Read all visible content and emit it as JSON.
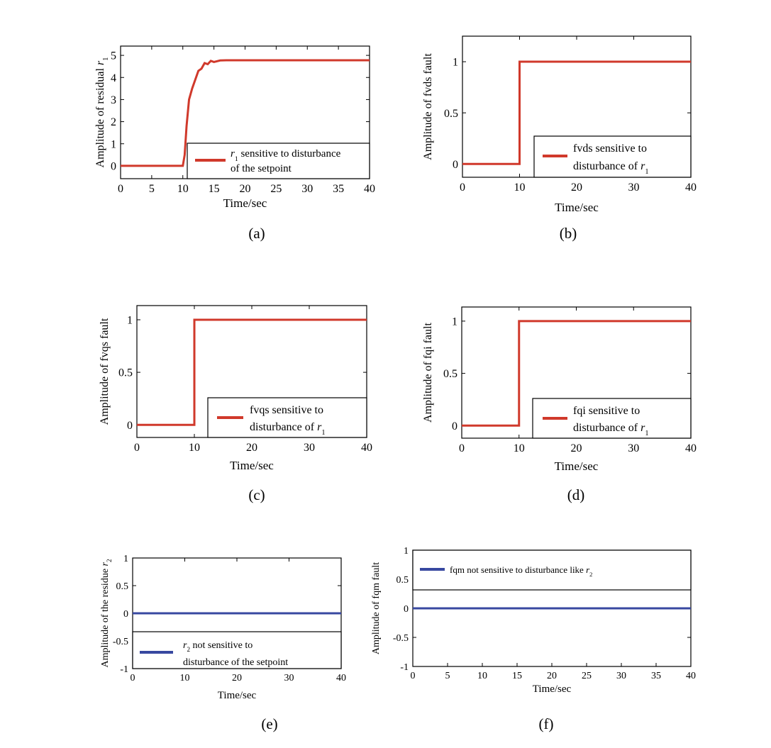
{
  "colors": {
    "red": "#d0392b",
    "blue": "#3848a0",
    "axis": "#000000"
  },
  "chart_data": [
    {
      "id": "a",
      "type": "line",
      "caption": "(a)",
      "xlabel": "Time/sec",
      "ylabel": [
        {
          "t": "Amplitude of residual "
        },
        {
          "t": "r",
          "i": true
        },
        {
          "t": "1",
          "sub": true
        }
      ],
      "xlim": [
        0,
        40
      ],
      "ylim": [
        -0.58,
        5.42
      ],
      "xticks": [
        0,
        5,
        10,
        15,
        20,
        25,
        30,
        35,
        40
      ],
      "yticks": [
        0,
        1,
        2,
        3,
        4,
        5
      ],
      "series": [
        {
          "name": "r1 sensitive to disturbance of the setpoint",
          "color": "red",
          "x": [
            0,
            10,
            10.3,
            10.6,
            11,
            11.5,
            12,
            12.5,
            13,
            13.5,
            14,
            14.5,
            15,
            16,
            17,
            40
          ],
          "y": [
            0,
            0,
            0.5,
            1.8,
            3.0,
            3.5,
            3.9,
            4.3,
            4.4,
            4.65,
            4.6,
            4.75,
            4.7,
            4.77,
            4.78,
            4.78
          ]
        }
      ],
      "legend": [
        [
          {
            "t": "r",
            "i": true
          },
          {
            "t": "1",
            "sub": true
          },
          {
            "t": " sensitive to disturbance"
          }
        ],
        [
          {
            "t": "of the setpoint"
          }
        ]
      ]
    },
    {
      "id": "b",
      "type": "line",
      "caption": "(b)",
      "xlabel": "Time/sec",
      "ylabel": [
        {
          "t": "Amplitude of fvds fault"
        }
      ],
      "xlim": [
        0,
        40
      ],
      "ylim": [
        -0.13,
        1.25
      ],
      "xticks": [
        0,
        10,
        20,
        30,
        40
      ],
      "yticks": [
        0,
        0.5,
        1
      ],
      "series": [
        {
          "name": "fvds sensitive to disturbance of r1",
          "color": "red",
          "x": [
            0,
            10,
            10,
            40
          ],
          "y": [
            0,
            0,
            1,
            1
          ]
        }
      ],
      "legend": [
        [
          {
            "t": "fvds sensitive to"
          }
        ],
        [
          {
            "t": "disturbance of "
          },
          {
            "t": "r",
            "i": true
          },
          {
            "t": "1",
            "sub": true
          }
        ]
      ]
    },
    {
      "id": "c",
      "type": "line",
      "caption": "(c)",
      "xlabel": "Time/sec",
      "ylabel": [
        {
          "t": "Amplitude of fvqs fault"
        }
      ],
      "xlim": [
        0,
        40
      ],
      "ylim": [
        -0.12,
        1.135
      ],
      "xticks": [
        0,
        10,
        20,
        30,
        40
      ],
      "yticks": [
        0,
        0.5,
        1
      ],
      "series": [
        {
          "name": "fvqs sensitive to disturbance of r1",
          "color": "red",
          "x": [
            0,
            10,
            10,
            40
          ],
          "y": [
            0,
            0,
            1,
            1
          ]
        }
      ],
      "legend": [
        [
          {
            "t": "fvqs sensitive to"
          }
        ],
        [
          {
            "t": "disturbance of "
          },
          {
            "t": "r",
            "i": true
          },
          {
            "t": "1",
            "sub": true
          }
        ]
      ]
    },
    {
      "id": "d",
      "type": "line",
      "caption": "(d)",
      "xlabel": "Time/sec",
      "ylabel": [
        {
          "t": "Amplitude of fqi fault"
        }
      ],
      "xlim": [
        0,
        40
      ],
      "ylim": [
        -0.12,
        1.135
      ],
      "xticks": [
        0,
        10,
        20,
        30,
        40
      ],
      "yticks": [
        0,
        0.5,
        1
      ],
      "series": [
        {
          "name": "fqi sensitive to disturbance of r1",
          "color": "red",
          "x": [
            0,
            10,
            10,
            40
          ],
          "y": [
            0,
            0,
            1,
            1
          ]
        }
      ],
      "legend": [
        [
          {
            "t": "fqi sensitive to"
          }
        ],
        [
          {
            "t": "disturbance of "
          },
          {
            "t": "r",
            "i": true
          },
          {
            "t": "1",
            "sub": true
          }
        ]
      ]
    },
    {
      "id": "e",
      "type": "line",
      "caption": "(e)",
      "xlabel": "Time/sec",
      "ylabel": [
        {
          "t": "Amplitude of the residue "
        },
        {
          "t": "r",
          "i": true
        },
        {
          "t": "2",
          "sub": true
        }
      ],
      "xlim": [
        0,
        40
      ],
      "ylim": [
        -1,
        1
      ],
      "xticks": [
        0,
        10,
        20,
        30,
        40
      ],
      "yticks": [
        -1,
        -0.5,
        0,
        0.5,
        1
      ],
      "series": [
        {
          "name": "r2 not sensitive to disturbance of the setpoint",
          "color": "blue",
          "x": [
            0,
            40
          ],
          "y": [
            0,
            0
          ]
        }
      ],
      "legend": [
        [
          {
            "t": "r",
            "i": true
          },
          {
            "t": "2",
            "sub": true
          },
          {
            "t": " not sensitive to"
          }
        ],
        [
          {
            "t": "disturbance of the setpoint"
          }
        ]
      ]
    },
    {
      "id": "f",
      "type": "line",
      "caption": "(f)",
      "xlabel": "Time/sec",
      "ylabel": [
        {
          "t": "Amplitude of fqm fault"
        }
      ],
      "xlim": [
        0,
        40
      ],
      "ylim": [
        -1,
        1
      ],
      "xticks": [
        0,
        5,
        10,
        15,
        20,
        25,
        30,
        35,
        40
      ],
      "yticks": [
        -1,
        -0.5,
        0,
        0.5,
        1
      ],
      "series": [
        {
          "name": "fqm not sensitive to disturbance like r2",
          "color": "blue",
          "x": [
            0,
            40
          ],
          "y": [
            0,
            0
          ]
        }
      ],
      "legend": [
        [
          {
            "t": "fqm not sensitive to disturbance like "
          },
          {
            "t": "r",
            "i": true
          },
          {
            "t": "2",
            "sub": true
          }
        ]
      ]
    }
  ]
}
